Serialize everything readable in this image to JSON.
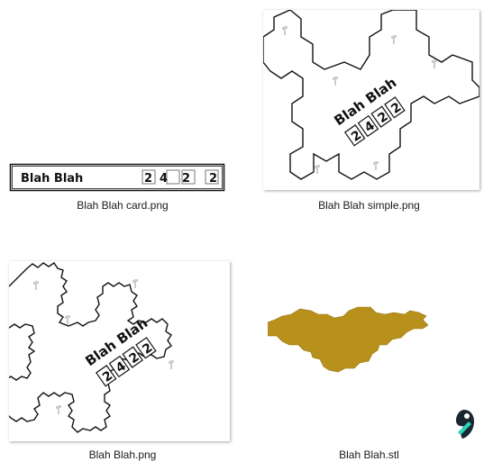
{
  "files": [
    {
      "name": "Blah Blah card.png"
    },
    {
      "name": "Blah Blah simple.png"
    },
    {
      "name": "Blah Blah.png"
    },
    {
      "name": "Blah Blah.stl"
    }
  ],
  "card": {
    "title": "Blah Blah",
    "numbers": [
      "2",
      "4",
      "2",
      "2"
    ]
  },
  "art": {
    "title": "Blah Blah",
    "numbers": [
      "2",
      "4",
      "2",
      "2"
    ]
  },
  "colors": {
    "stl_fill": "#b8901c",
    "slicer_dark": "#1a2630",
    "slicer_accent": "#2bd3b7"
  },
  "icons": {
    "stl_app": "slicer-app-icon"
  }
}
